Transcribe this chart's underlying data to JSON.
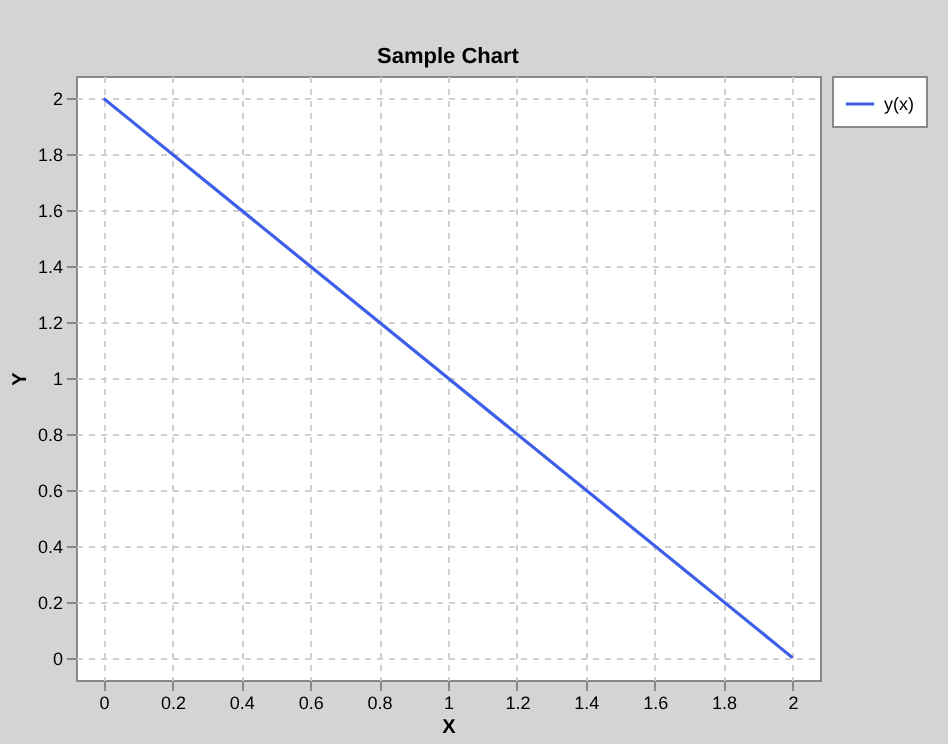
{
  "chart_data": {
    "type": "line",
    "title": "Sample Chart",
    "xlabel": "X",
    "ylabel": "Y",
    "x": [
      0,
      2
    ],
    "series": [
      {
        "name": "y(x)",
        "color": "#3d5ee8",
        "values": [
          2,
          0
        ]
      }
    ],
    "xlim": [
      -0.08,
      2.08
    ],
    "ylim": [
      -0.08,
      2.08
    ],
    "xticks": [
      0,
      0.2,
      0.4,
      0.6,
      0.8,
      1,
      1.2,
      1.4,
      1.6,
      1.8,
      2
    ],
    "yticks": [
      0,
      0.2,
      0.4,
      0.6,
      0.8,
      1,
      1.2,
      1.4,
      1.6,
      1.8,
      2
    ],
    "grid": true,
    "legend": "right",
    "marker": "none",
    "line_style": "solid"
  }
}
